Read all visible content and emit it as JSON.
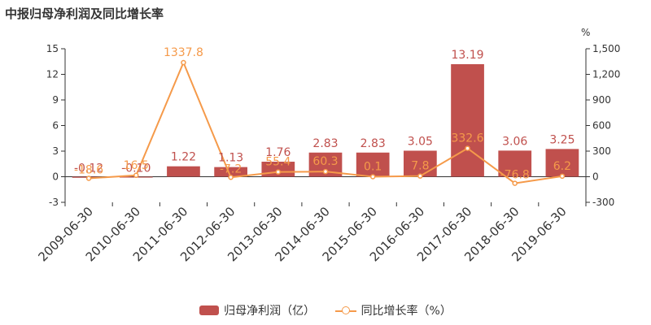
{
  "title": "中报归母净利润及同比增长率",
  "chart_data": {
    "type": "bar",
    "categories": [
      "2009-06-30",
      "2010-06-30",
      "2011-06-30",
      "2012-06-30",
      "2013-06-30",
      "2014-06-30",
      "2015-06-30",
      "2016-06-30",
      "2017-06-30",
      "2018-06-30",
      "2019-06-30"
    ],
    "series": [
      {
        "name": "归母净利润（亿）",
        "type": "bar",
        "axis": "left",
        "color": "#c0504d",
        "values": [
          -0.12,
          -0.1,
          1.22,
          1.13,
          1.76,
          2.83,
          2.83,
          3.05,
          13.19,
          3.06,
          3.25
        ],
        "labels": [
          "-0.12",
          "-0.10",
          "1.22",
          "1.13",
          "1.76",
          "2.83",
          "2.83",
          "3.05",
          "13.19",
          "3.06",
          "3.25"
        ]
      },
      {
        "name": "同比增长率（%）",
        "type": "line",
        "axis": "right",
        "color": "#f59a4a",
        "values": [
          -18.6,
          16.5,
          1337.8,
          -7.2,
          55.4,
          60.3,
          0.1,
          7.8,
          332.6,
          -76.8,
          6.2
        ],
        "labels": [
          "-18.6",
          "16.5",
          "1337.8",
          "-7.2",
          "55.4",
          "60.3",
          "0.1",
          "7.8",
          "332.6",
          "-76.8",
          "6.2"
        ]
      }
    ],
    "y_left": {
      "min": -3,
      "max": 15,
      "ticks": [
        "-3",
        "0",
        "3",
        "6",
        "9",
        "12",
        "15"
      ]
    },
    "y_right": {
      "min": -300,
      "max": 1500,
      "unit": "%",
      "ticks": [
        "-300",
        "0",
        "300",
        "600",
        "900",
        "1,200",
        "1,500"
      ]
    },
    "legend_position": "bottom"
  }
}
